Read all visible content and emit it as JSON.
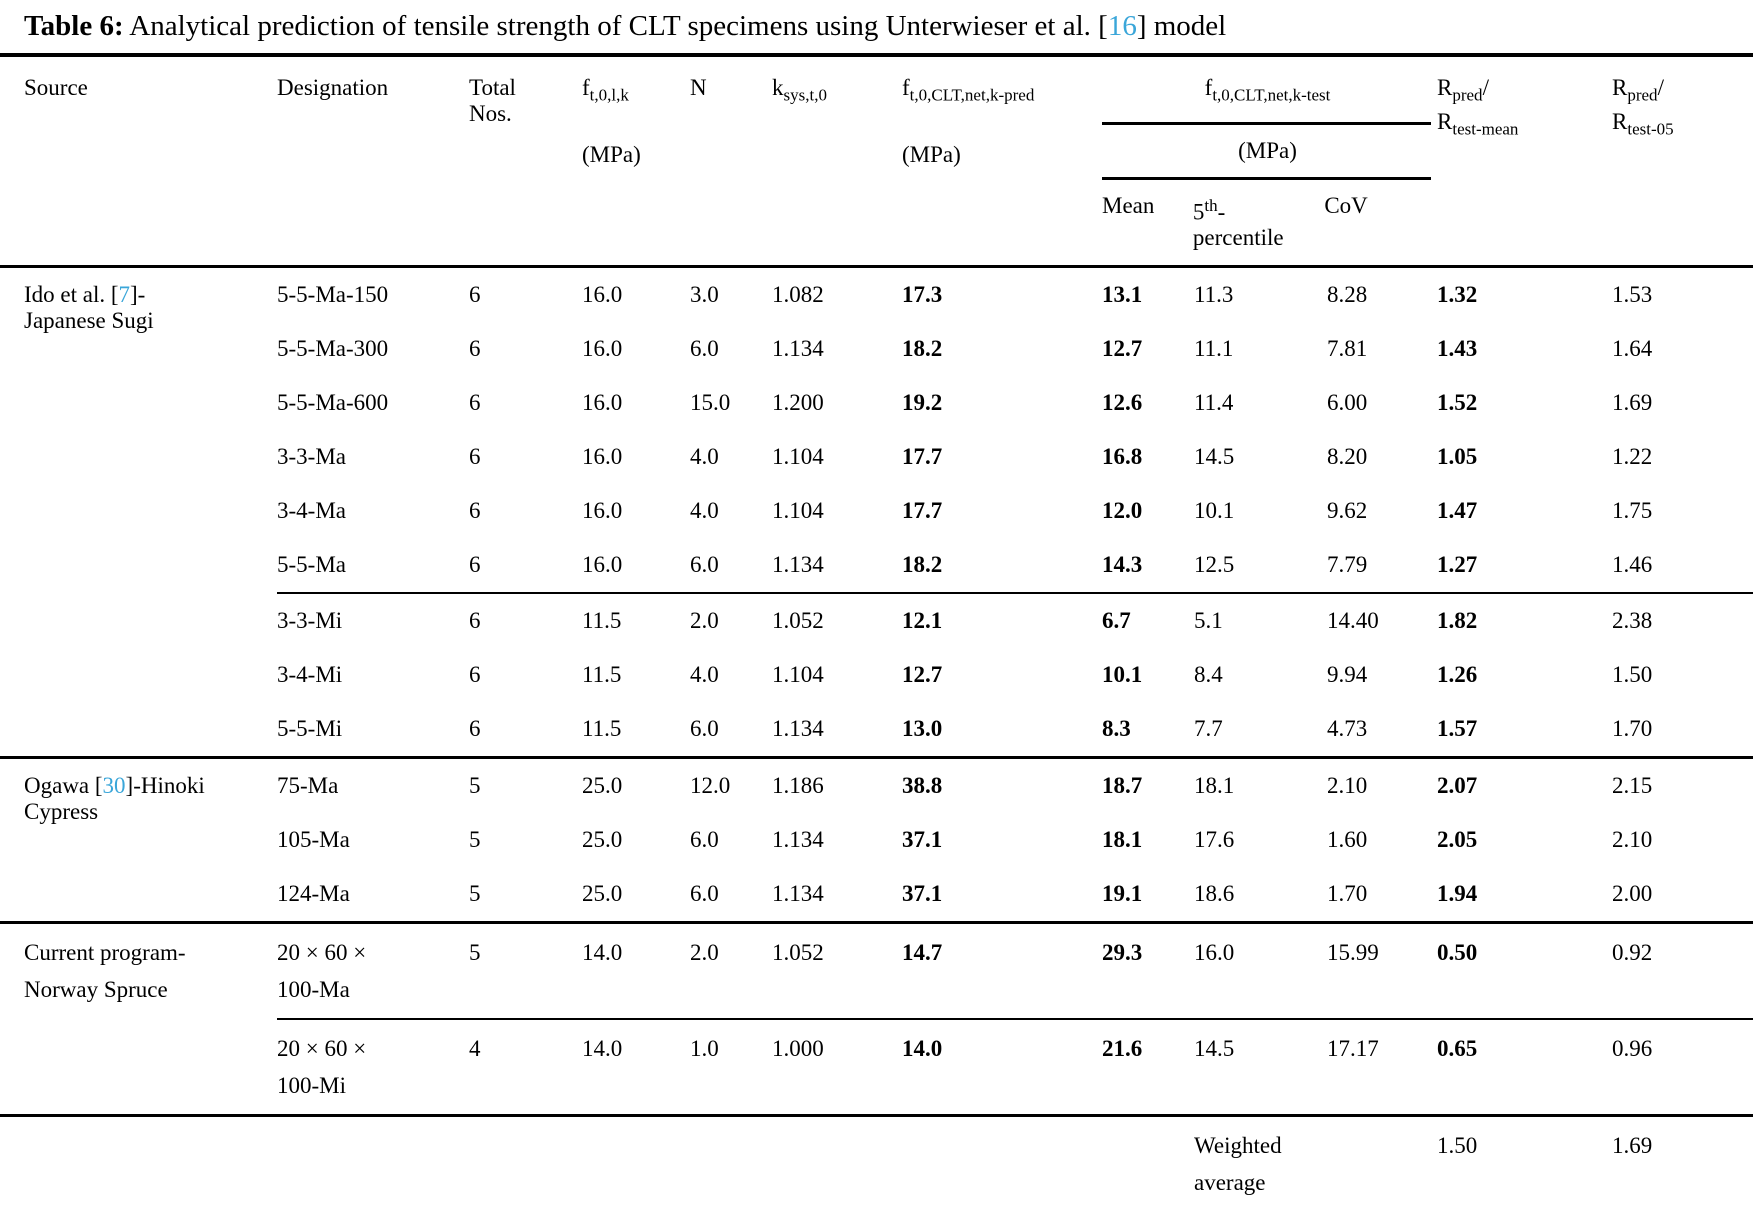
{
  "colors": {
    "reference": "#3aa6d9"
  },
  "caption": {
    "label": "Table 6:",
    "body": " Analytical prediction of tensile strength of CLT specimens using Unterwieser et al. [",
    "ref": "16",
    "tail": "] model"
  },
  "header": {
    "source": "Source",
    "designation": "Designation",
    "total_line1": "Total",
    "total_line2": "Nos.",
    "ft0lk": {
      "base": "f",
      "sub": "t,0,l,k",
      "unit": "(MPa)"
    },
    "n": "N",
    "ksys": {
      "base": "k",
      "sub": "sys,t,0"
    },
    "fpred": {
      "base": "f",
      "sub": "t,0,CLT,net,k-pred",
      "unit": "(MPa)"
    },
    "ftest": {
      "base": "f",
      "sub": "t,0,CLT,net,k-test",
      "unit": "(MPa)",
      "mean": "Mean",
      "p5_base": "5",
      "p5_sup": "th",
      "p5_dash": "-",
      "p5_line2": "percentile",
      "cov": "CoV"
    },
    "r_mean": {
      "num_base": "R",
      "num_sub": "pred",
      "slash": "/",
      "den_base": "R",
      "den_sub": "test-mean"
    },
    "r_05": {
      "num_base": "R",
      "num_sub": "pred",
      "slash": "/",
      "den_base": "R",
      "den_sub": "test-05"
    }
  },
  "table": {
    "sections": [
      {
        "source": {
          "pre": "Ido et al. [",
          "ref": "7",
          "post": "]-",
          "line2": "Japanese Sugi"
        },
        "rows": [
          {
            "designation": "5-5-Ma-150",
            "total": "6",
            "ft0lk": "16.0",
            "n": "3.0",
            "ksys": "1.082",
            "fpred": "17.3",
            "mean": "13.1",
            "p5": "11.3",
            "cov": "8.28",
            "r_mean": "1.32",
            "r_05": "1.53"
          },
          {
            "designation": "5-5-Ma-300",
            "total": "6",
            "ft0lk": "16.0",
            "n": "6.0",
            "ksys": "1.134",
            "fpred": "18.2",
            "mean": "12.7",
            "p5": "11.1",
            "cov": "7.81",
            "r_mean": "1.43",
            "r_05": "1.64"
          },
          {
            "designation": "5-5-Ma-600",
            "total": "6",
            "ft0lk": "16.0",
            "n": "15.0",
            "ksys": "1.200",
            "fpred": "19.2",
            "mean": "12.6",
            "p5": "11.4",
            "cov": "6.00",
            "r_mean": "1.52",
            "r_05": "1.69"
          },
          {
            "designation": "3-3-Ma",
            "total": "6",
            "ft0lk": "16.0",
            "n": "4.0",
            "ksys": "1.104",
            "fpred": "17.7",
            "mean": "16.8",
            "p5": "14.5",
            "cov": "8.20",
            "r_mean": "1.05",
            "r_05": "1.22"
          },
          {
            "designation": "3-4-Ma",
            "total": "6",
            "ft0lk": "16.0",
            "n": "4.0",
            "ksys": "1.104",
            "fpred": "17.7",
            "mean": "12.0",
            "p5": "10.1",
            "cov": "9.62",
            "r_mean": "1.47",
            "r_05": "1.75"
          },
          {
            "designation": "5-5-Ma",
            "total": "6",
            "ft0lk": "16.0",
            "n": "6.0",
            "ksys": "1.134",
            "fpred": "18.2",
            "mean": "14.3",
            "p5": "12.5",
            "cov": "7.79",
            "r_mean": "1.27",
            "r_05": "1.46"
          },
          {
            "designation": "3-3-Mi",
            "total": "6",
            "ft0lk": "11.5",
            "n": "2.0",
            "ksys": "1.052",
            "fpred": "12.1",
            "mean": "6.7",
            "p5": "5.1",
            "cov": "14.40",
            "r_mean": "1.82",
            "r_05": "2.38"
          },
          {
            "designation": "3-4-Mi",
            "total": "6",
            "ft0lk": "11.5",
            "n": "4.0",
            "ksys": "1.104",
            "fpred": "12.7",
            "mean": "10.1",
            "p5": "8.4",
            "cov": "9.94",
            "r_mean": "1.26",
            "r_05": "1.50"
          },
          {
            "designation": "5-5-Mi",
            "total": "6",
            "ft0lk": "11.5",
            "n": "6.0",
            "ksys": "1.134",
            "fpred": "13.0",
            "mean": "8.3",
            "p5": "7.7",
            "cov": "4.73",
            "r_mean": "1.57",
            "r_05": "1.70"
          }
        ]
      },
      {
        "source": {
          "pre": "Ogawa [",
          "ref": "30",
          "post": "]-Hinoki",
          "line2": "Cypress"
        },
        "rows": [
          {
            "designation": "75-Ma",
            "total": "5",
            "ft0lk": "25.0",
            "n": "12.0",
            "ksys": "1.186",
            "fpred": "38.8",
            "mean": "18.7",
            "p5": "18.1",
            "cov": "2.10",
            "r_mean": "2.07",
            "r_05": "2.15"
          },
          {
            "designation": "105-Ma",
            "total": "5",
            "ft0lk": "25.0",
            "n": "6.0",
            "ksys": "1.134",
            "fpred": "37.1",
            "mean": "18.1",
            "p5": "17.6",
            "cov": "1.60",
            "r_mean": "2.05",
            "r_05": "2.10"
          },
          {
            "designation": "124-Ma",
            "total": "5",
            "ft0lk": "25.0",
            "n": "6.0",
            "ksys": "1.134",
            "fpred": "37.1",
            "mean": "19.1",
            "p5": "18.6",
            "cov": "1.70",
            "r_mean": "1.94",
            "r_05": "2.00"
          }
        ]
      },
      {
        "source": {
          "pre": "Current program-",
          "ref": "",
          "post": "",
          "line2": "Norway Spruce"
        },
        "rows": [
          {
            "designation": "20 × 60 ×\n100-Ma",
            "total": "5",
            "ft0lk": "14.0",
            "n": "2.0",
            "ksys": "1.052",
            "fpred": "14.7",
            "mean": "29.3",
            "p5": "16.0",
            "cov": "15.99",
            "r_mean": "0.50",
            "r_05": "0.92"
          },
          {
            "designation": "20 × 60 ×\n100-Mi",
            "total": "4",
            "ft0lk": "14.0",
            "n": "1.0",
            "ksys": "1.000",
            "fpred": "14.0",
            "mean": "21.6",
            "p5": "14.5",
            "cov": "17.17",
            "r_mean": "0.65",
            "r_05": "0.96"
          }
        ]
      }
    ],
    "footer": {
      "label": "Weighted\naverage",
      "r_mean": "1.50",
      "r_05": "1.69"
    }
  }
}
